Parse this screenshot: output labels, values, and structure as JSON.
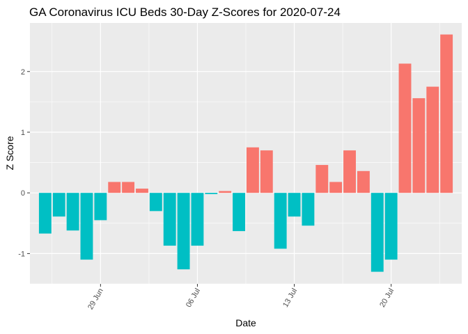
{
  "chart_data": {
    "type": "bar",
    "title": "GA Coronavirus ICU Beds 30-Day Z-Scores for 2020-07-24",
    "xlabel": "Date",
    "ylabel": "Z Score",
    "x": [
      "2020-06-25",
      "2020-06-26",
      "2020-06-27",
      "2020-06-28",
      "2020-06-29",
      "2020-06-30",
      "2020-07-01",
      "2020-07-02",
      "2020-07-03",
      "2020-07-04",
      "2020-07-05",
      "2020-07-06",
      "2020-07-07",
      "2020-07-08",
      "2020-07-09",
      "2020-07-10",
      "2020-07-11",
      "2020-07-12",
      "2020-07-13",
      "2020-07-14",
      "2020-07-15",
      "2020-07-16",
      "2020-07-17",
      "2020-07-18",
      "2020-07-19",
      "2020-07-20",
      "2020-07-21",
      "2020-07-22",
      "2020-07-23",
      "2020-07-24"
    ],
    "values": [
      -0.67,
      -0.39,
      -0.62,
      -1.1,
      -0.45,
      0.18,
      0.18,
      0.07,
      -0.3,
      -0.87,
      -1.26,
      -0.87,
      -0.02,
      0.03,
      -0.63,
      0.75,
      0.7,
      -0.92,
      -0.39,
      -0.54,
      0.46,
      0.18,
      0.7,
      0.36,
      -1.3,
      -1.1,
      2.13,
      1.56,
      1.75,
      2.61
    ],
    "colors": {
      "positive": "#F8766D",
      "negative": "#00BFC4",
      "panel": "#EBEBEB",
      "grid": "#FFFFFF"
    },
    "x_ticks": [
      {
        "date": "2020-06-29",
        "label": "29 Jun"
      },
      {
        "date": "2020-07-06",
        "label": "06 Jul"
      },
      {
        "date": "2020-07-13",
        "label": "13 Jul"
      },
      {
        "date": "2020-07-20",
        "label": "20 Jul"
      }
    ],
    "y_ticks": [
      -1,
      0,
      1,
      2
    ],
    "ylim": [
      -1.5,
      2.8
    ],
    "grid": true,
    "legend": "none"
  }
}
